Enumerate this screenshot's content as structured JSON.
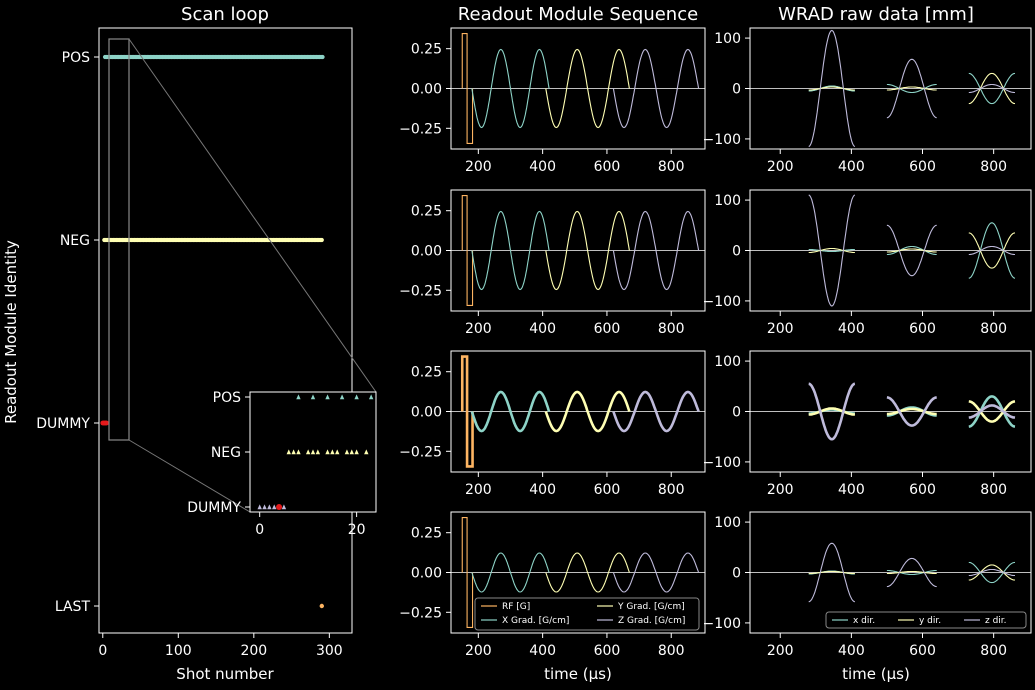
{
  "colors": {
    "rf": "#fdb462",
    "x": "#8dd3c7",
    "y": "#ffffb3",
    "z": "#bebada",
    "dummy": "#e41a1c",
    "last": "#fdb462"
  },
  "chart_data": [
    {
      "id": "scan-loop",
      "type": "scatter",
      "title": "Scan loop",
      "xlabel": "Shot number",
      "ylabel": "Readout Module Identity",
      "xlim": [
        -5,
        330
      ],
      "x_ticks": [
        0,
        100,
        200,
        300
      ],
      "y_categories": [
        "LAST",
        "DUMMY",
        "NEG",
        "POS"
      ],
      "series": [
        {
          "category": "POS",
          "x_start": 3,
          "x_end": 291,
          "x_step": 2,
          "color_key": "x"
        },
        {
          "category": "NEG",
          "x_start": 2,
          "x_end": 290,
          "x_step": 2,
          "color_key": "y"
        },
        {
          "category": "DUMMY",
          "x": [
            0,
            1,
            2,
            3,
            4,
            5
          ],
          "color_key": "dummy"
        },
        {
          "category": "LAST",
          "x": [
            290
          ],
          "color_key": "last"
        }
      ],
      "inset": {
        "xlim": [
          -2,
          24
        ],
        "x_ticks": [
          0,
          20
        ],
        "y_categories": [
          "DUMMY",
          "NEG",
          "POS"
        ],
        "dummy_x": [
          0,
          1,
          2,
          3,
          4,
          5
        ],
        "red_x": [
          4
        ],
        "neg_x": [
          6,
          7,
          8,
          10,
          11,
          12,
          14,
          15,
          16,
          18,
          19,
          20,
          22
        ],
        "pos_x": [
          8,
          11,
          14,
          17,
          20,
          23
        ]
      }
    },
    {
      "id": "readout-sequence",
      "type": "line",
      "title": "Readout Module Sequence",
      "xlabel": "time (μs)",
      "xlim": [
        115,
        905
      ],
      "ylim": [
        -0.38,
        0.38
      ],
      "x_ticks": [
        200,
        400,
        600,
        800
      ],
      "y_ticks": [
        0.25,
        0.0,
        -0.25
      ],
      "y_tick_labels": [
        "0.25",
        "0.00",
        "−0.25"
      ],
      "rf_pulse": {
        "x_start": 150,
        "x_mid": 165,
        "x_end": 182,
        "positive": 0.345,
        "negative": -0.345
      },
      "gradients": [
        {
          "name": "X Grad. [G/cm]",
          "x_start": 180,
          "x_end": 420,
          "periods": 2,
          "amplitude": 0.245
        },
        {
          "name": "Y Grad. [G/cm]",
          "x_start": 410,
          "x_end": 670,
          "periods": 2,
          "amplitude": 0.245
        },
        {
          "name": "Z Grad. [G/cm]",
          "x_start": 620,
          "x_end": 885,
          "periods": 2,
          "amplitude": 0.245
        }
      ],
      "panels": [
        {
          "amp_scale": 1.0,
          "sign": -1,
          "bold": false
        },
        {
          "amp_scale": 1.0,
          "sign": -1,
          "bold": false
        },
        {
          "amp_scale": 0.5,
          "sign": -1,
          "bold": true
        },
        {
          "amp_scale": 0.5,
          "sign": -1,
          "bold": false
        }
      ],
      "legend": {
        "placement": "lower-right",
        "entries": [
          "RF [G]",
          "Y Grad. [G/cm]",
          "X Grad. [G/cm]",
          "Z Grad. [G/cm]"
        ]
      }
    },
    {
      "id": "wrad-raw",
      "type": "line",
      "title": "WRAD raw data [mm]",
      "xlabel": "time (μs)",
      "xlim": [
        115,
        905
      ],
      "ylim": [
        -120,
        120
      ],
      "x_ticks": [
        200,
        400,
        600,
        800
      ],
      "y_ticks": [
        100,
        0,
        -100
      ],
      "y_tick_labels": [
        "100",
        "0",
        "−100"
      ],
      "segments": [
        {
          "x_start": 280,
          "x_end": 410,
          "dominant": "z"
        },
        {
          "x_start": 500,
          "x_end": 640,
          "dominant": "z"
        },
        {
          "x_start": 730,
          "x_end": 860,
          "dominant": "x"
        }
      ],
      "panels": [
        {
          "amp": [
            [
              5,
              3,
              115
            ],
            [
              -8,
              3,
              58
            ],
            [
              -30,
              30,
              8
            ]
          ]
        },
        {
          "amp": [
            [
              -2,
              4,
              -110
            ],
            [
              8,
              3,
              -50
            ],
            [
              55,
              -35,
              8
            ]
          ]
        },
        {
          "amp": [
            [
              4,
              6,
              -55
            ],
            [
              8,
              5,
              -28
            ],
            [
              30,
              -20,
              12
            ]
          ],
          "bold": true
        },
        {
          "amp": [
            [
              3,
              2,
              58
            ],
            [
              -4,
              2,
              28
            ],
            [
              -20,
              15,
              6
            ]
          ]
        }
      ],
      "legend": {
        "placement": "lower-right",
        "entries": [
          "x dir.",
          "y dir.",
          "z dir."
        ]
      }
    }
  ]
}
